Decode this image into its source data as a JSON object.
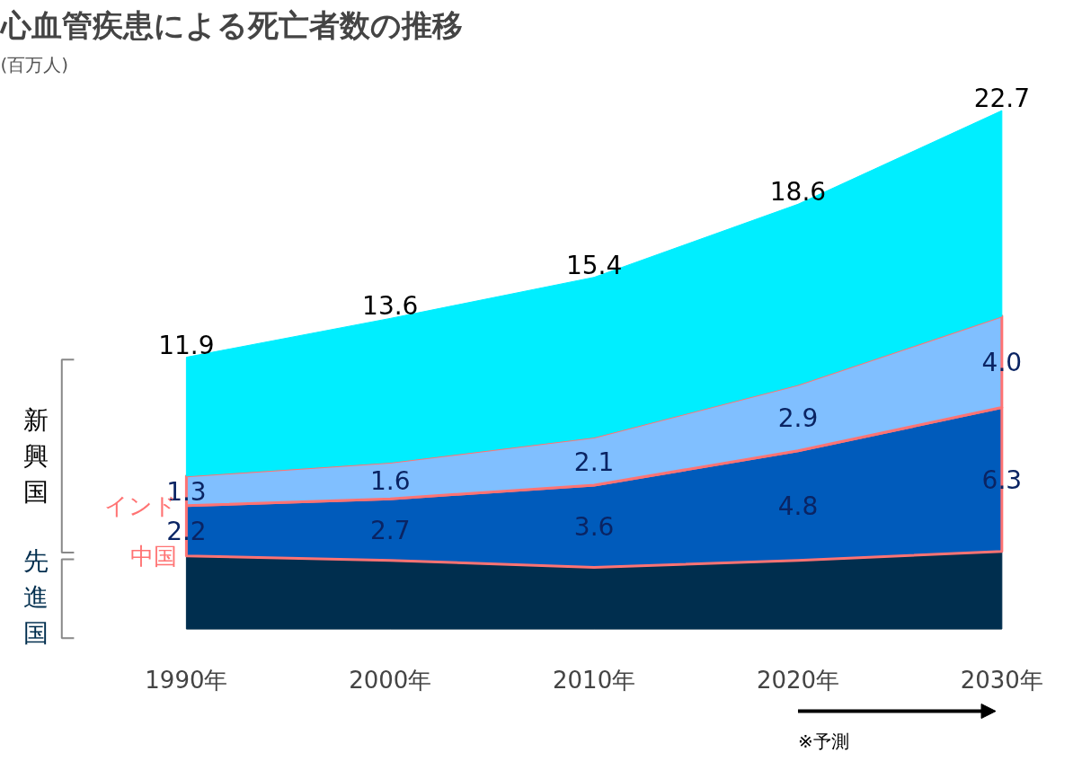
{
  "chart_data": {
    "type": "area",
    "stacked": true,
    "title": "心血管疾患による死亡者数の推移",
    "subtitle": "(百万人)",
    "x": [
      1990,
      2000,
      2010,
      2020,
      2030
    ],
    "xlim": [
      1990,
      2030
    ],
    "xticks": [
      {
        "value": 1990,
        "label": "1990年"
      },
      {
        "value": 2000,
        "label": "2000年"
      },
      {
        "value": 2010,
        "label": "2010年"
      },
      {
        "value": 2020,
        "label": "2020年"
      },
      {
        "value": 2030,
        "label": "2030年"
      }
    ],
    "tick_labels": "x",
    "series": [
      {
        "name": "先進国",
        "color": "#002e4e",
        "values": [
          3.2,
          3.0,
          2.7,
          3.0,
          3.4
        ]
      },
      {
        "name": "中国",
        "color": "#005bbb",
        "values": [
          2.2,
          2.7,
          3.6,
          4.8,
          6.3
        ],
        "value_labels": [
          "2.2",
          "2.7",
          "3.6",
          "4.8",
          "6.3"
        ]
      },
      {
        "name": "インド",
        "color": "#80bfff",
        "values": [
          1.3,
          1.6,
          2.1,
          2.9,
          4.0
        ],
        "value_labels": [
          "1.3",
          "1.6",
          "2.1",
          "2.9",
          "4.0"
        ]
      },
      {
        "color": "#00eeff",
        "values": [
          5.2,
          6.3,
          7.0,
          7.9,
          9.0
        ]
      }
    ],
    "totals": [
      "11.9",
      "13.6",
      "15.4",
      "18.6",
      "22.7"
    ],
    "grid": false,
    "annotations": [
      "新興国",
      "※予測"
    ]
  }
}
